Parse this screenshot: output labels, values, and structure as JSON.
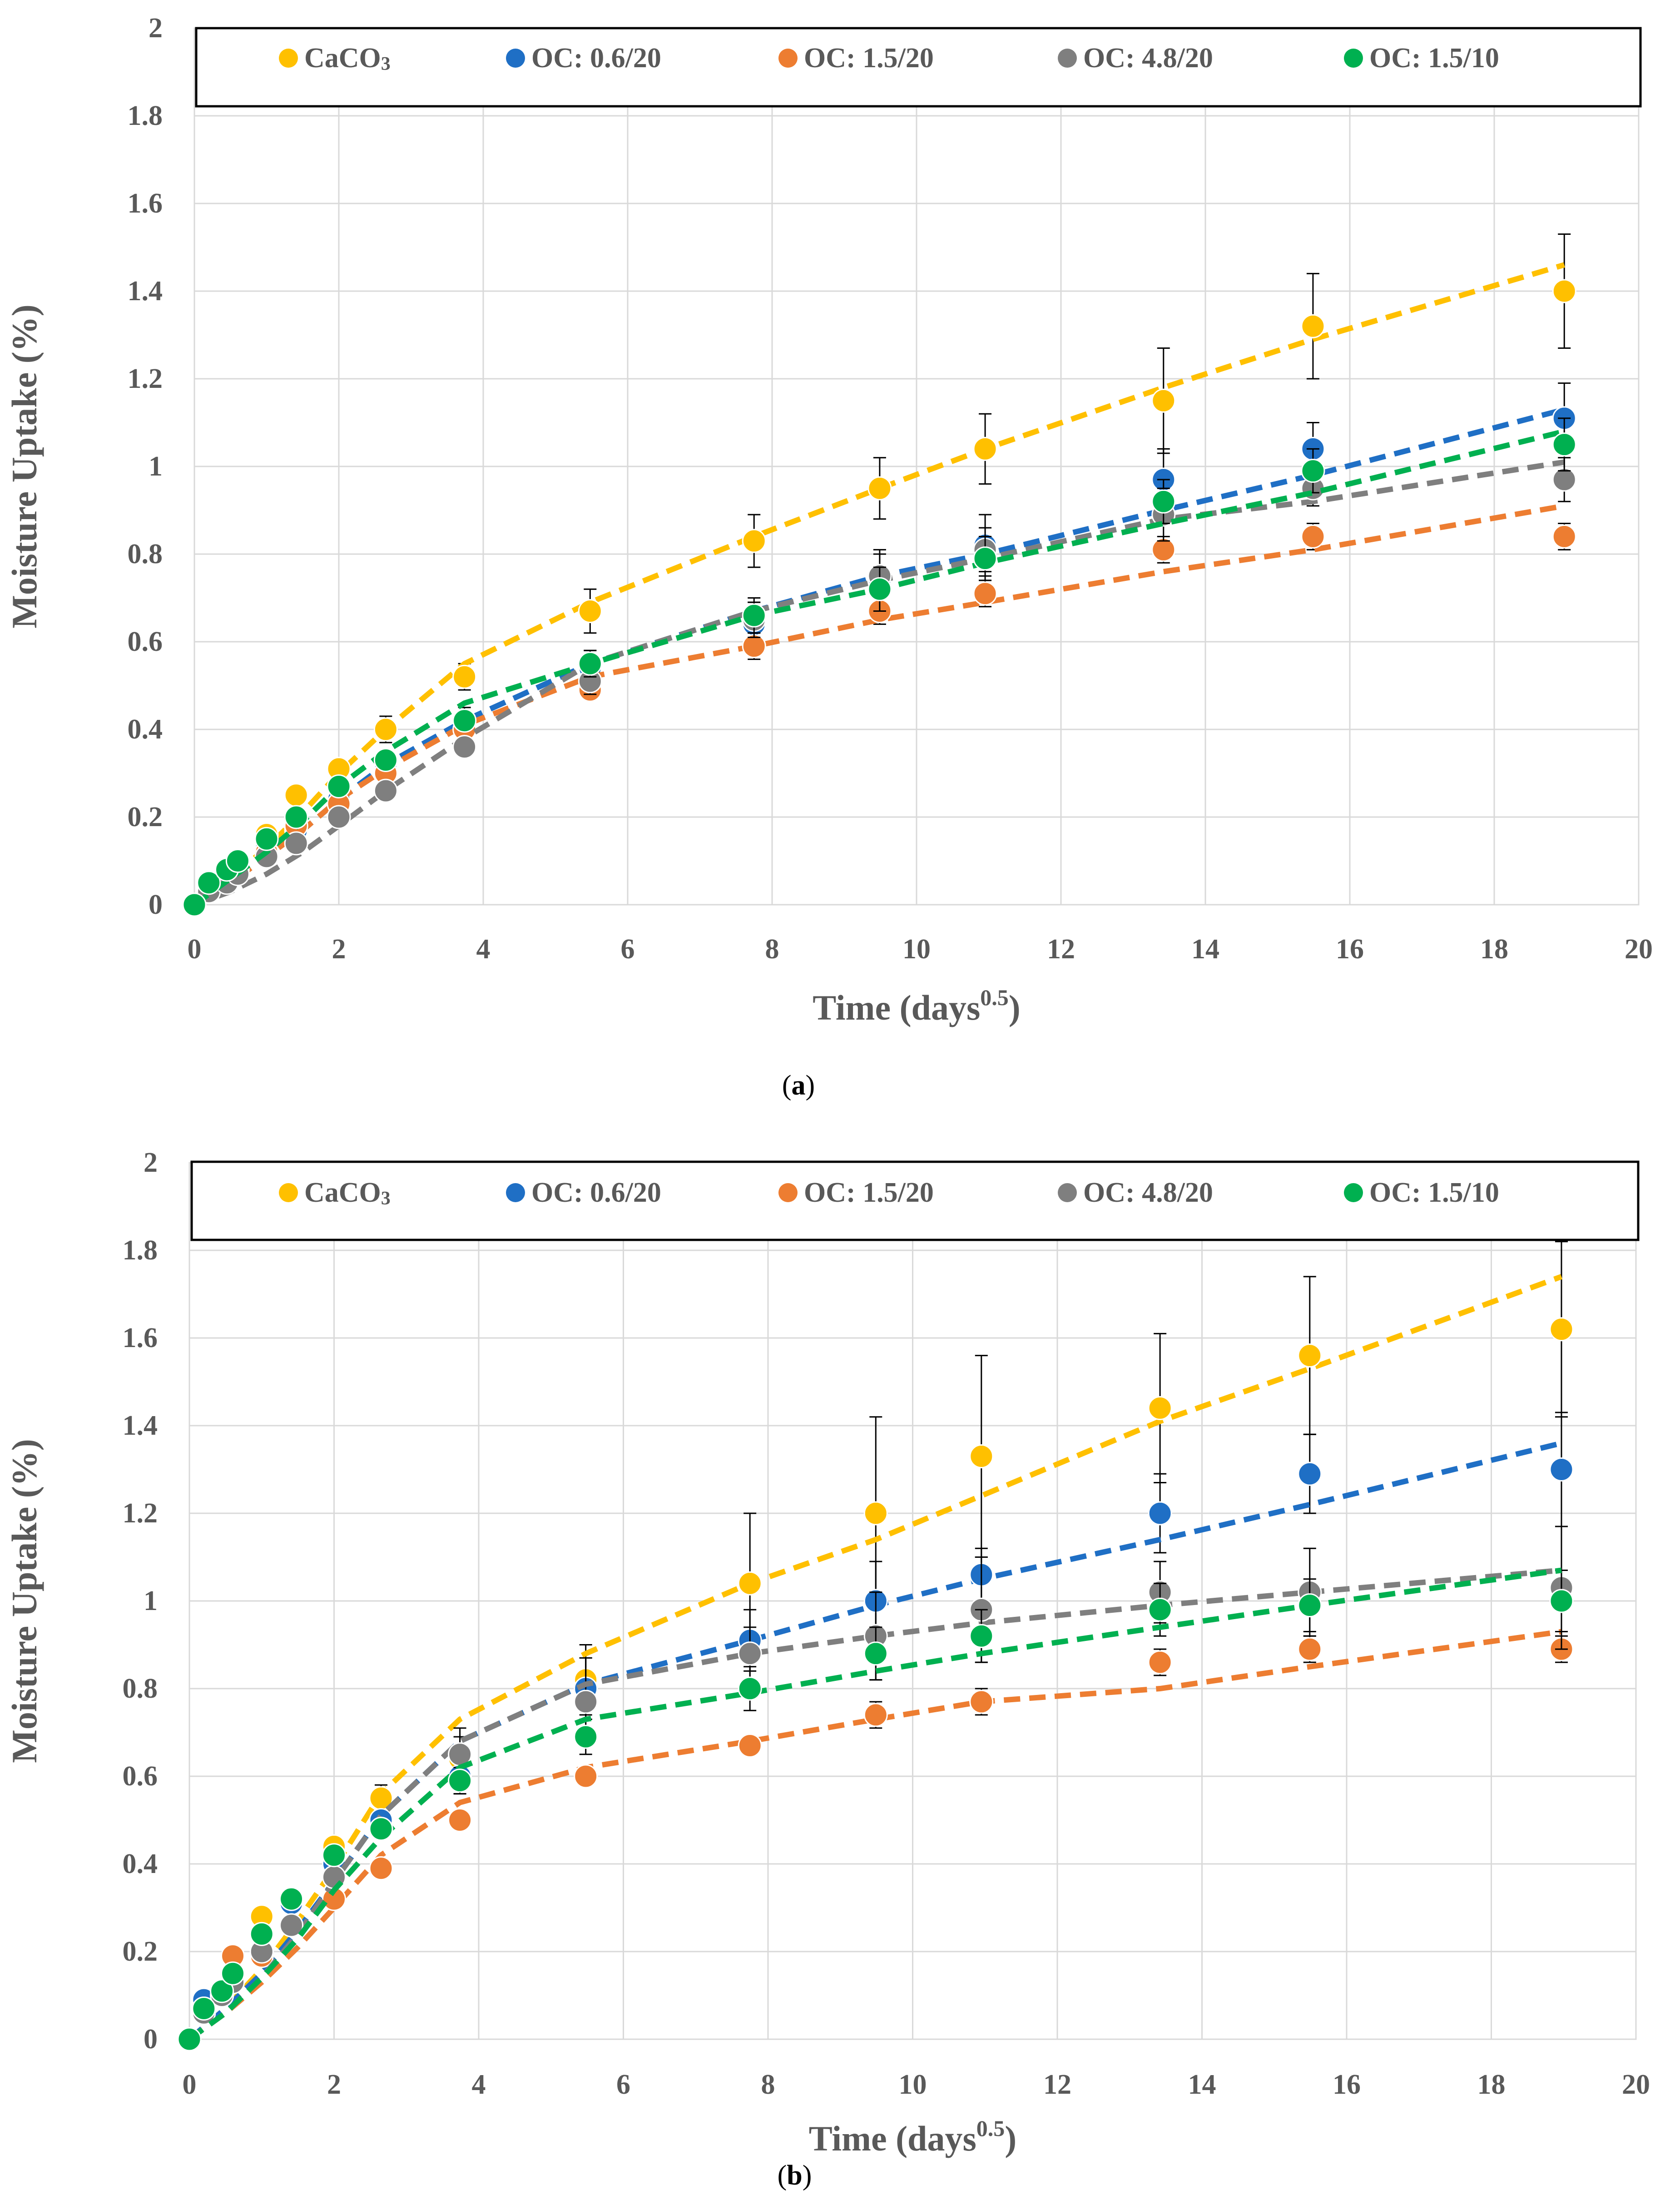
{
  "chart_data": [
    {
      "panel": "a",
      "caption_open": "(",
      "caption_letter": "a",
      "caption_close": ")",
      "type": "scatter",
      "xlabel_main": "Time (days",
      "xlabel_sup": "0.5",
      "xlabel_close": ")",
      "ylabel": "Moisture Uptake (%)",
      "xlim": [
        0,
        20
      ],
      "ylim": [
        0,
        2
      ],
      "xticks": [
        "0",
        "2",
        "4",
        "6",
        "8",
        "10",
        "12",
        "14",
        "16",
        "18",
        "20"
      ],
      "yticks": [
        "0",
        "0.2",
        "0.4",
        "0.6",
        "0.8",
        "1",
        "1.2",
        "1.4",
        "1.6",
        "1.8",
        "2"
      ],
      "grid": true,
      "legend_position": "top",
      "x": [
        0,
        0.2,
        0.45,
        0.6,
        1.0,
        1.41,
        2.0,
        2.65,
        3.74,
        5.48,
        7.75,
        9.49,
        10.95,
        13.42,
        15.49,
        18.97
      ],
      "series": [
        {
          "name": "CaCO",
          "name_sub": "3",
          "color": "#FFC000",
          "values": [
            0,
            0.05,
            0.08,
            0.1,
            0.16,
            0.25,
            0.31,
            0.4,
            0.52,
            0.67,
            0.83,
            0.95,
            1.04,
            1.15,
            1.32,
            1.4
          ],
          "errors": [
            0,
            0,
            0,
            0,
            0,
            0.02,
            0.02,
            0.03,
            0.03,
            0.05,
            0.06,
            0.07,
            0.08,
            0.12,
            0.12,
            0.13
          ],
          "fit_x": [
            0,
            0.5,
            1,
            1.5,
            2,
            2.65,
            3.74,
            5.48,
            7.75,
            9.49,
            10.95,
            13.42,
            15.49,
            18.97
          ],
          "fit_y": [
            0,
            0.06,
            0.13,
            0.21,
            0.3,
            0.4,
            0.55,
            0.69,
            0.84,
            0.95,
            1.04,
            1.18,
            1.29,
            1.46
          ]
        },
        {
          "name": "OC: 0.6/20",
          "color": "#1F6FC5",
          "values": [
            0,
            0.04,
            0.07,
            0.09,
            0.13,
            0.17,
            0.24,
            0.32,
            0.42,
            0.54,
            0.64,
            0.74,
            0.82,
            0.97,
            1.04,
            1.11
          ],
          "errors": [
            0,
            0,
            0,
            0,
            0,
            0.01,
            0.02,
            0.02,
            0.03,
            0.04,
            0.05,
            0.07,
            0.07,
            0.07,
            0.06,
            0.08
          ],
          "fit_x": [
            0,
            0.5,
            1,
            1.5,
            2,
            2.65,
            3.74,
            5.48,
            7.75,
            9.49,
            10.95,
            13.42,
            15.49,
            18.97
          ],
          "fit_y": [
            0,
            0.05,
            0.11,
            0.17,
            0.24,
            0.32,
            0.42,
            0.55,
            0.67,
            0.75,
            0.8,
            0.9,
            0.98,
            1.13
          ]
        },
        {
          "name": "OC: 1.5/20",
          "color": "#ED7D31",
          "values": [
            0,
            0.04,
            0.06,
            0.08,
            0.12,
            0.18,
            0.23,
            0.3,
            0.4,
            0.49,
            0.59,
            0.67,
            0.71,
            0.81,
            0.84,
            0.84
          ],
          "errors": [
            0,
            0,
            0,
            0,
            0,
            0.01,
            0.02,
            0.02,
            0.02,
            0.02,
            0.03,
            0.03,
            0.03,
            0.03,
            0.03,
            0.03
          ],
          "fit_x": [
            0,
            0.5,
            1,
            1.5,
            2,
            2.65,
            3.74,
            5.48,
            7.75,
            9.49,
            10.95,
            13.42,
            15.49,
            18.97
          ],
          "fit_y": [
            0,
            0.05,
            0.11,
            0.17,
            0.24,
            0.31,
            0.41,
            0.52,
            0.59,
            0.65,
            0.69,
            0.76,
            0.81,
            0.91
          ]
        },
        {
          "name": "OC: 4.8/20",
          "color": "#7F7F7F",
          "values": [
            0,
            0.03,
            0.05,
            0.07,
            0.11,
            0.14,
            0.2,
            0.26,
            0.36,
            0.51,
            0.65,
            0.75,
            0.81,
            0.89,
            0.95,
            0.97
          ],
          "errors": [
            0,
            0,
            0,
            0,
            0,
            0.01,
            0.01,
            0.02,
            0.02,
            0.03,
            0.04,
            0.05,
            0.05,
            0.06,
            0.04,
            0.05
          ],
          "fit_x": [
            0,
            0.5,
            1,
            1.5,
            2,
            2.65,
            3.74,
            5.48,
            7.75,
            9.49,
            10.95,
            13.42,
            15.49,
            18.97
          ],
          "fit_y": [
            0,
            0.03,
            0.07,
            0.12,
            0.18,
            0.26,
            0.38,
            0.55,
            0.67,
            0.74,
            0.79,
            0.88,
            0.92,
            1.01
          ]
        },
        {
          "name": "OC: 1.5/10",
          "color": "#00B050",
          "values": [
            0,
            0.05,
            0.08,
            0.1,
            0.15,
            0.2,
            0.27,
            0.33,
            0.42,
            0.55,
            0.66,
            0.72,
            0.79,
            0.92,
            0.99,
            1.05
          ],
          "errors": [
            0,
            0,
            0,
            0,
            0,
            0.01,
            0.02,
            0.02,
            0.02,
            0.03,
            0.04,
            0.05,
            0.05,
            0.05,
            0.05,
            0.06
          ],
          "fit_x": [
            0,
            0.5,
            1,
            1.5,
            2,
            2.65,
            3.74,
            5.48,
            7.75,
            9.49,
            10.95,
            13.42,
            15.49,
            18.97
          ],
          "fit_y": [
            0,
            0.06,
            0.12,
            0.19,
            0.27,
            0.35,
            0.46,
            0.55,
            0.66,
            0.72,
            0.78,
            0.87,
            0.94,
            1.08
          ]
        }
      ]
    },
    {
      "panel": "b",
      "caption_open": "(",
      "caption_letter": "b",
      "caption_close": ")",
      "type": "scatter",
      "xlabel_main": "Time (days",
      "xlabel_sup": "0.5",
      "xlabel_close": ")",
      "ylabel": "Moisture Uptake (%)",
      "xlim": [
        0,
        20
      ],
      "ylim": [
        0,
        2
      ],
      "xticks": [
        "0",
        "2",
        "4",
        "6",
        "8",
        "10",
        "12",
        "14",
        "16",
        "18",
        "20"
      ],
      "yticks": [
        "0",
        "0.2",
        "0.4",
        "0.6",
        "0.8",
        "1",
        "1.2",
        "1.4",
        "1.6",
        "1.8",
        "2"
      ],
      "grid": true,
      "legend_position": "top",
      "x": [
        0,
        0.2,
        0.45,
        0.6,
        1.0,
        1.41,
        2.0,
        2.65,
        3.74,
        5.48,
        7.75,
        9.49,
        10.95,
        13.42,
        15.49,
        18.97
      ],
      "series": [
        {
          "name": "CaCO",
          "name_sub": "3",
          "color": "#FFC000",
          "values": [
            0,
            0.06,
            0.1,
            0.15,
            0.28,
            0.32,
            0.44,
            0.55,
            0.64,
            0.82,
            1.04,
            1.2,
            1.33,
            1.44,
            1.56,
            1.62
          ],
          "errors": [
            0,
            0,
            0,
            0,
            0,
            0.01,
            0.02,
            0.03,
            0.05,
            0.08,
            0.16,
            0.22,
            0.23,
            0.17,
            0.18,
            0.2
          ],
          "fit_x": [
            0,
            0.5,
            1,
            1.5,
            2,
            2.65,
            3.74,
            5.48,
            7.75,
            9.49,
            10.95,
            13.42,
            15.49,
            18.97
          ],
          "fit_y": [
            0,
            0.07,
            0.16,
            0.27,
            0.39,
            0.56,
            0.73,
            0.88,
            1.04,
            1.14,
            1.24,
            1.41,
            1.53,
            1.74
          ]
        },
        {
          "name": "OC: 0.6/20",
          "color": "#1F6FC5",
          "values": [
            0,
            0.09,
            0.11,
            0.15,
            0.24,
            0.31,
            0.4,
            0.5,
            0.6,
            0.8,
            0.91,
            1.0,
            1.06,
            1.2,
            1.29,
            1.3
          ],
          "errors": [
            0,
            0,
            0,
            0,
            0,
            0.01,
            0.02,
            0.02,
            0.04,
            0.07,
            0.07,
            0.09,
            0.06,
            0.09,
            0.09,
            0.13
          ],
          "fit_x": [
            0,
            0.5,
            1,
            1.5,
            2,
            2.65,
            3.74,
            5.48,
            7.75,
            9.49,
            10.95,
            13.42,
            15.49,
            18.97
          ],
          "fit_y": [
            0,
            0.07,
            0.15,
            0.25,
            0.36,
            0.51,
            0.68,
            0.81,
            0.91,
            0.99,
            1.05,
            1.14,
            1.22,
            1.36
          ]
        },
        {
          "name": "OC: 1.5/20",
          "color": "#ED7D31",
          "values": [
            0,
            0.07,
            0.1,
            0.19,
            0.19,
            0.26,
            0.32,
            0.39,
            0.5,
            0.6,
            0.67,
            0.74,
            0.77,
            0.86,
            0.89,
            0.89
          ],
          "errors": [
            0,
            0,
            0,
            0,
            0,
            0.01,
            0.02,
            0.02,
            0.02,
            0.02,
            0.02,
            0.03,
            0.03,
            0.03,
            0.03,
            0.03
          ],
          "fit_x": [
            0,
            0.5,
            1,
            1.5,
            2,
            2.65,
            3.74,
            5.48,
            7.75,
            9.49,
            10.95,
            13.42,
            15.49,
            18.97
          ],
          "fit_y": [
            0,
            0.06,
            0.13,
            0.21,
            0.3,
            0.42,
            0.54,
            0.62,
            0.68,
            0.73,
            0.77,
            0.8,
            0.85,
            0.93
          ]
        },
        {
          "name": "OC: 4.8/20",
          "color": "#7F7F7F",
          "values": [
            0,
            0.06,
            0.1,
            0.13,
            0.2,
            0.26,
            0.37,
            0.48,
            0.65,
            0.77,
            0.88,
            0.92,
            0.98,
            1.02,
            1.02,
            1.03
          ],
          "errors": [
            0,
            0,
            0,
            0,
            0,
            0.01,
            0.02,
            0.02,
            0.06,
            0.1,
            0.06,
            0.1,
            0.12,
            0.07,
            0.1,
            0.14
          ],
          "fit_x": [
            0,
            0.5,
            1,
            1.5,
            2,
            2.65,
            3.74,
            5.48,
            7.75,
            9.49,
            10.95,
            13.42,
            15.49,
            18.97
          ],
          "fit_y": [
            0,
            0.06,
            0.14,
            0.24,
            0.36,
            0.51,
            0.68,
            0.81,
            0.88,
            0.92,
            0.95,
            0.99,
            1.02,
            1.07
          ]
        },
        {
          "name": "OC: 1.5/10",
          "color": "#00B050",
          "values": [
            0,
            0.07,
            0.11,
            0.15,
            0.24,
            0.32,
            0.42,
            0.48,
            0.59,
            0.69,
            0.8,
            0.88,
            0.92,
            0.98,
            0.99,
            1.0
          ],
          "errors": [
            0,
            0,
            0,
            0,
            0,
            0.01,
            0.02,
            0.02,
            0.03,
            0.04,
            0.05,
            0.06,
            0.06,
            0.06,
            0.06,
            0.07
          ],
          "fit_x": [
            0,
            0.5,
            1,
            1.5,
            2,
            2.65,
            3.74,
            5.48,
            7.75,
            9.49,
            10.95,
            13.42,
            15.49,
            18.97
          ],
          "fit_y": [
            0,
            0.06,
            0.14,
            0.23,
            0.34,
            0.46,
            0.62,
            0.73,
            0.79,
            0.84,
            0.88,
            0.94,
            0.99,
            1.07
          ]
        }
      ]
    }
  ]
}
